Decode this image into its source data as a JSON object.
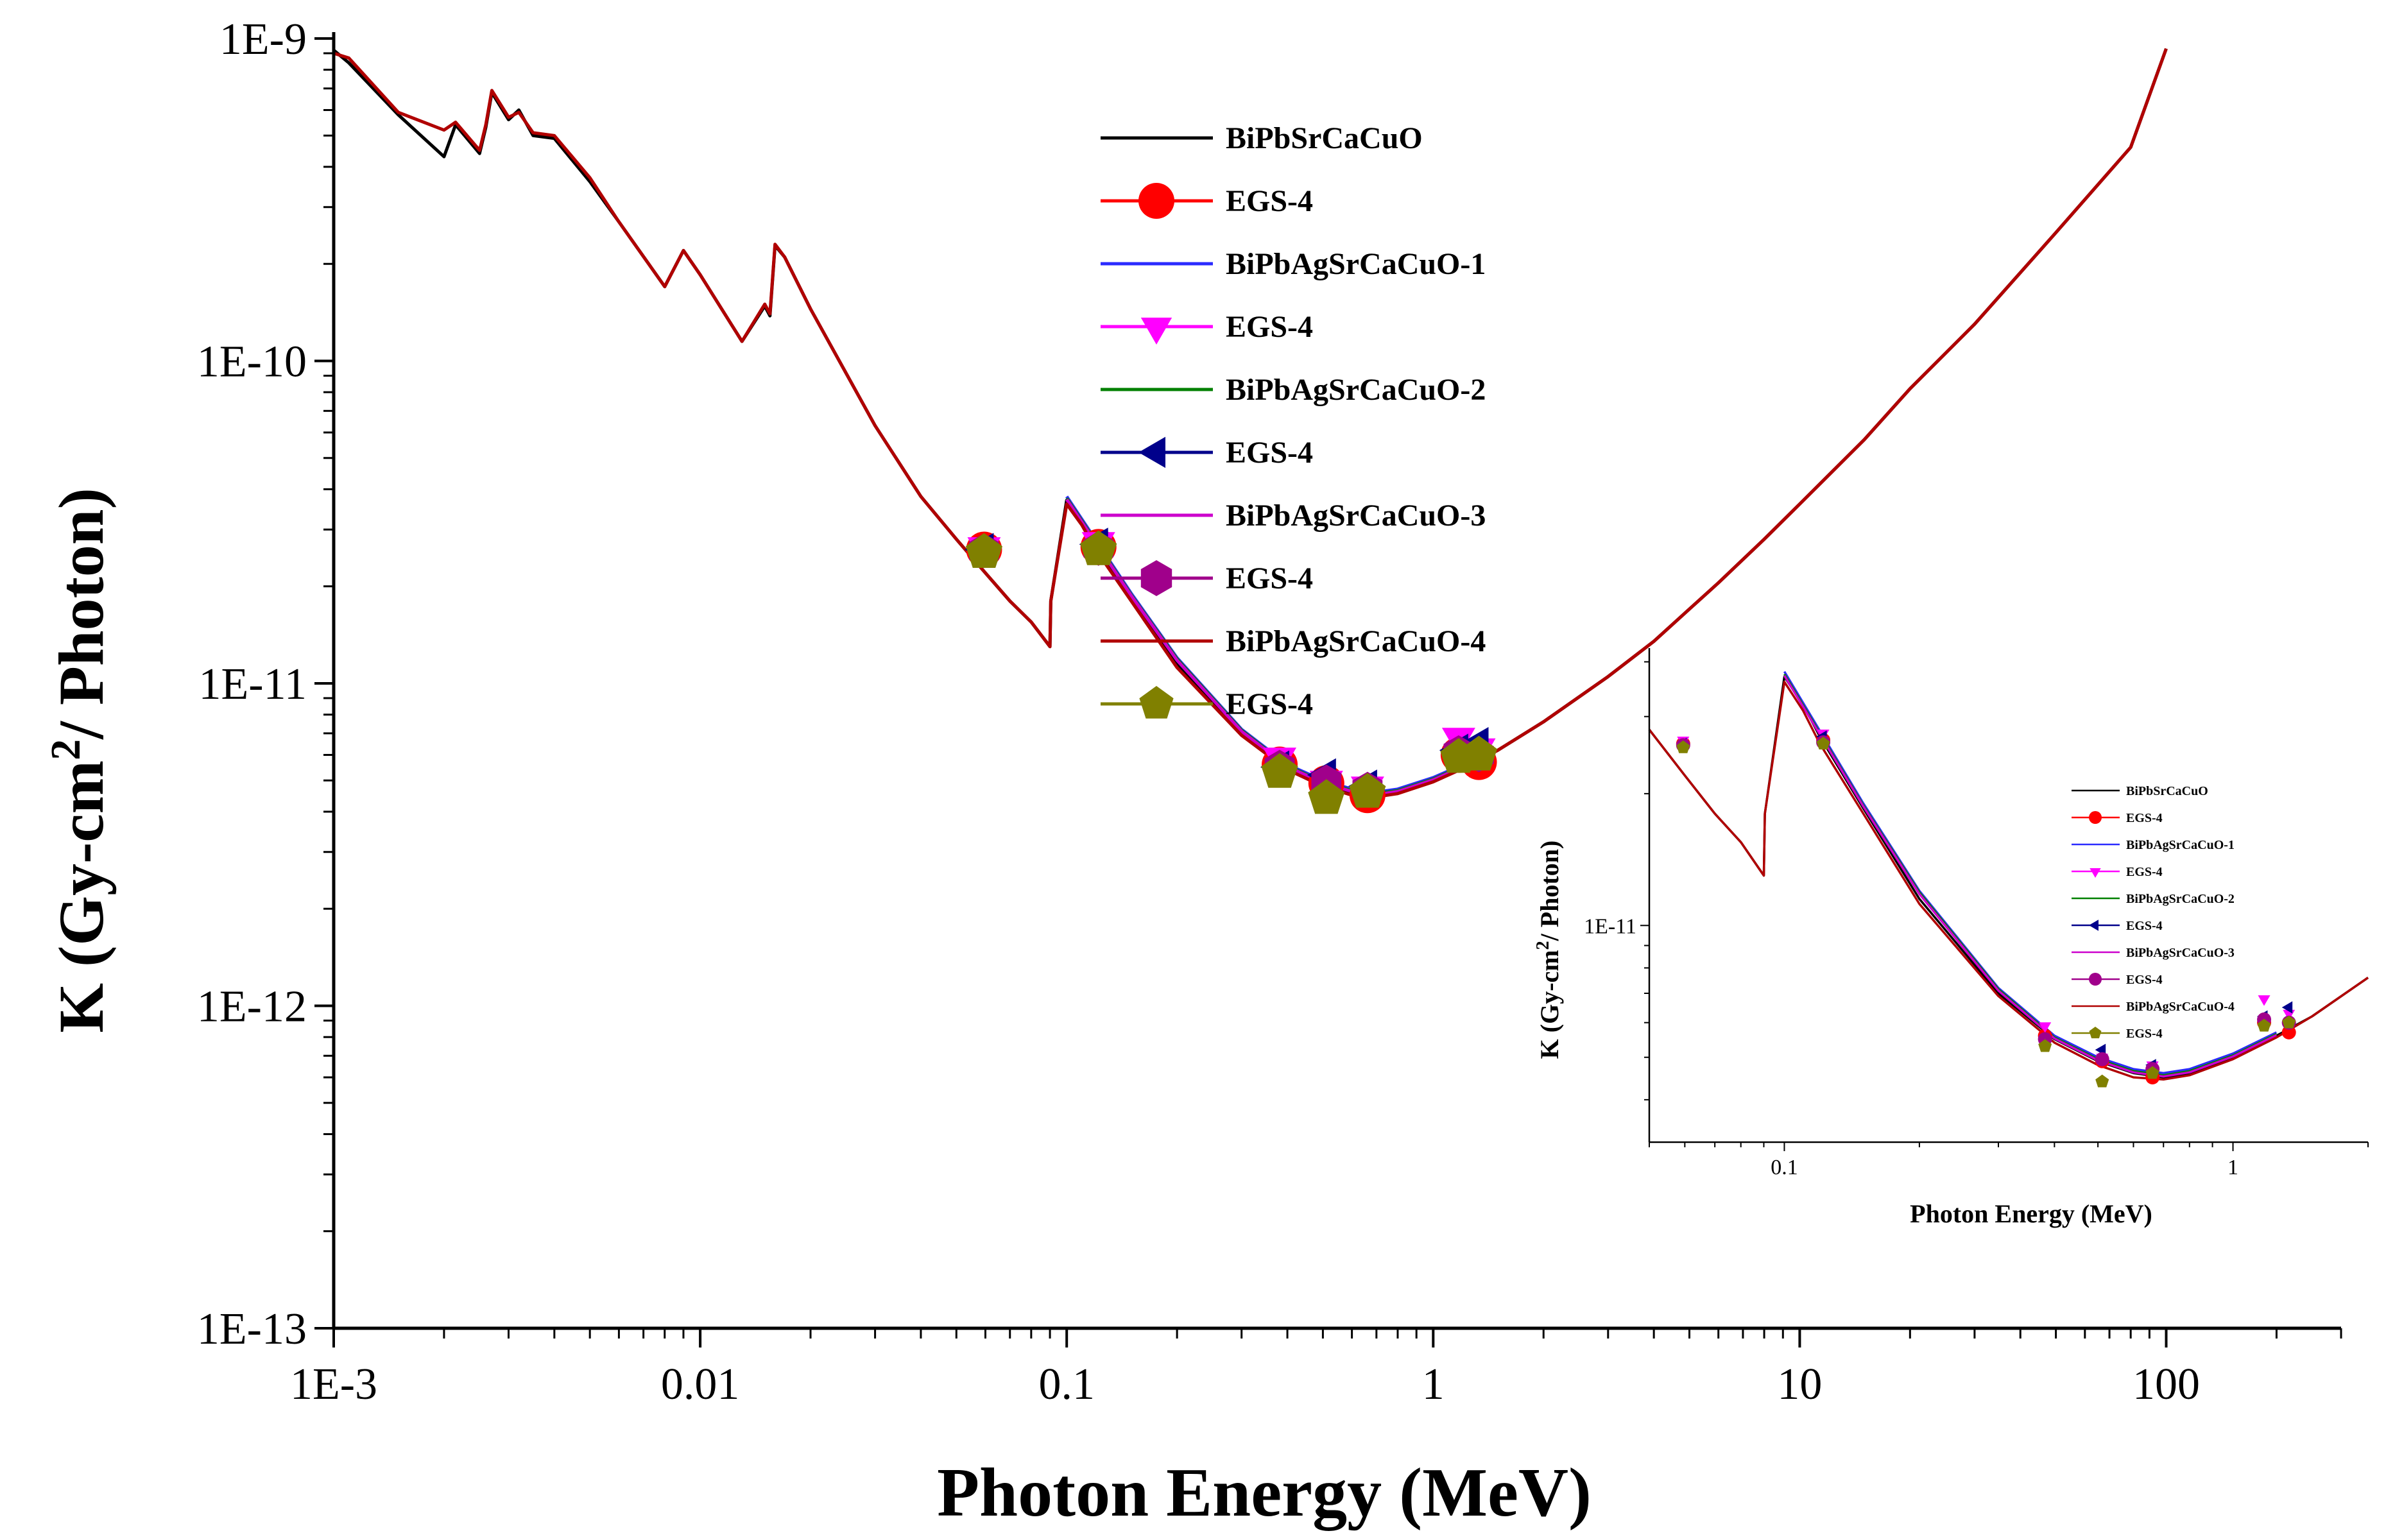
{
  "chart_data": [
    {
      "id": "main",
      "type": "line",
      "title": "",
      "xlabel": "Photon Energy (MeV)",
      "ylabel": "K (Gy-cm2/ Photon)",
      "ylabel_parts": {
        "pre": "K (Gy-cm",
        "sup": "2",
        "post": "/ Photon)"
      },
      "xscale": "log",
      "yscale": "log",
      "xlim": [
        0.001,
        300
      ],
      "ylim": [
        1e-13,
        1e-09
      ],
      "xticks": [
        {
          "v": 0.001,
          "label": "1E-3"
        },
        {
          "v": 0.01,
          "label": "0.01"
        },
        {
          "v": 0.1,
          "label": "0.1"
        },
        {
          "v": 1,
          "label": "1"
        },
        {
          "v": 10,
          "label": "10"
        },
        {
          "v": 100,
          "label": "100"
        }
      ],
      "yticks": [
        {
          "v": 1e-09,
          "label": "1E-9"
        },
        {
          "v": 1e-10,
          "label": "1E-10"
        },
        {
          "v": 1e-11,
          "label": "1E-11"
        },
        {
          "v": 1e-12,
          "label": "1E-12"
        },
        {
          "v": 1e-13,
          "label": "1E-13"
        }
      ],
      "legend_position": "top-center",
      "series": [
        {
          "name": "BiPbSrCaCuO",
          "kind": "line",
          "color": "#000000",
          "ref": "c1"
        },
        {
          "name": "EGS-4",
          "kind": "marker",
          "marker": "circle",
          "color": "#ff0000",
          "ref": "m1"
        },
        {
          "name": "BiPbAgSrCaCuO-1",
          "kind": "line",
          "color": "#2b2bff",
          "ref": "c2"
        },
        {
          "name": "EGS-4",
          "kind": "marker",
          "marker": "triangle-down",
          "color": "#ff00ff",
          "ref": "m2"
        },
        {
          "name": "BiPbAgSrCaCuO-2",
          "kind": "line",
          "color": "#008000",
          "ref": "c3"
        },
        {
          "name": "EGS-4",
          "kind": "marker",
          "marker": "triangle-left",
          "color": "#00008b",
          "ref": "m3"
        },
        {
          "name": "BiPbAgSrCaCuO-3",
          "kind": "line",
          "color": "#cc00cc",
          "ref": "c4"
        },
        {
          "name": "EGS-4",
          "kind": "marker",
          "marker": "hexagon",
          "color": "#a0008b",
          "ref": "m4"
        },
        {
          "name": "BiPbAgSrCaCuO-4",
          "kind": "line",
          "color": "#b00000",
          "ref": "c5"
        },
        {
          "name": "EGS-4",
          "kind": "marker",
          "marker": "pentagon",
          "color": "#808000",
          "ref": "m5"
        }
      ],
      "curves": {
        "c1": {
          "x": [
            0.001,
            0.0011,
            0.0015,
            0.002,
            0.00215,
            0.0025,
            0.0026,
            0.0027,
            0.003,
            0.0032,
            0.0035,
            0.004,
            0.005,
            0.006,
            0.008,
            0.009,
            0.01,
            0.013,
            0.015,
            0.0155,
            0.016,
            0.017,
            0.02,
            0.03,
            0.04,
            0.05,
            0.06,
            0.07,
            0.08,
            0.09,
            0.0905,
            0.1,
            0.11,
            0.12,
            0.15,
            0.2,
            0.3,
            0.4,
            0.5,
            0.6,
            0.7,
            0.8,
            1,
            1.25,
            1.5,
            2,
            3,
            4,
            5,
            6,
            8,
            10,
            15,
            20,
            30,
            50,
            80,
            100
          ],
          "y": [
            9.2e-10,
            8.4e-10,
            5.8e-10,
            4.3e-10,
            5.4e-10,
            4.4e-10,
            5.3e-10,
            6.8e-10,
            5.6e-10,
            6e-10,
            5e-10,
            4.9e-10,
            3.6e-10,
            2.7e-10,
            1.7e-10,
            2.2e-10,
            1.85e-10,
            1.15e-10,
            1.48e-10,
            1.38e-10,
            2.28e-10,
            2.1e-10,
            1.45e-10,
            6.3e-11,
            3.8e-11,
            2.8e-11,
            2.2e-11,
            1.8e-11,
            1.55e-11,
            1.3e-11,
            1.8e-11,
            3.7e-11,
            3.2e-11,
            2.7e-11,
            1.85e-11,
            1.15e-11,
            7e-12,
            5.5e-12,
            4.9e-12,
            4.6e-12,
            4.5e-12,
            4.6e-12,
            5e-12,
            5.6e-12,
            6.2e-12,
            7.6e-12,
            1.05e-11,
            1.35e-11,
            1.7e-11,
            2.05e-11,
            2.8e-11,
            3.6e-11,
            5.7e-11,
            8.2e-11,
            1.3e-10,
            2.5e-10,
            4.6e-10,
            9.3e-10
          ]
        },
        "c2": {
          "x": [
            0.1,
            0.15,
            0.2,
            0.3,
            0.4,
            0.5,
            0.6,
            0.7,
            0.8,
            1,
            1.25
          ],
          "y": [
            3.8e-11,
            1.9e-11,
            1.2e-11,
            7.2e-12,
            5.6e-12,
            5e-12,
            4.7e-12,
            4.6e-12,
            4.7e-12,
            5.1e-12,
            5.7e-12
          ]
        },
        "c3": {
          "x": [
            0.1,
            0.15,
            0.2,
            0.3,
            0.4,
            0.5,
            0.6,
            0.7,
            0.8,
            1,
            1.25
          ],
          "y": [
            3.75e-11,
            1.88e-11,
            1.19e-11,
            7.15e-12,
            5.55e-12,
            4.95e-12,
            4.65e-12,
            4.55e-12,
            4.65e-12,
            5.05e-12,
            5.65e-12
          ]
        },
        "c4": {
          "x": [
            0.1,
            0.15,
            0.2,
            0.3,
            0.4,
            0.5,
            0.6,
            0.7,
            0.8,
            1,
            1.25
          ],
          "y": [
            3.72e-11,
            1.87e-11,
            1.18e-11,
            7.1e-12,
            5.52e-12,
            4.92e-12,
            4.62e-12,
            4.52e-12,
            4.62e-12,
            5.02e-12,
            5.62e-12
          ]
        },
        "c5": {
          "x": [
            0.001,
            0.0011,
            0.0015,
            0.002,
            0.00215,
            0.0025,
            0.0026,
            0.0027,
            0.003,
            0.0032,
            0.0035,
            0.004,
            0.005,
            0.006,
            0.008,
            0.009,
            0.01,
            0.013,
            0.015,
            0.0155,
            0.016,
            0.017,
            0.02,
            0.03,
            0.04,
            0.05,
            0.06,
            0.07,
            0.08,
            0.09,
            0.0905,
            0.1,
            0.11,
            0.12,
            0.15,
            0.2,
            0.3,
            0.4,
            0.5,
            0.6,
            0.7,
            0.8,
            1,
            1.25,
            1.5,
            2,
            3,
            4,
            5,
            6,
            8,
            10,
            15,
            20,
            30,
            50,
            80,
            100
          ],
          "y": [
            9e-10,
            8.7e-10,
            5.9e-10,
            5.2e-10,
            5.5e-10,
            4.5e-10,
            5.4e-10,
            6.9e-10,
            5.7e-10,
            5.9e-10,
            5.1e-10,
            5e-10,
            3.7e-10,
            2.7e-10,
            1.7e-10,
            2.2e-10,
            1.85e-10,
            1.15e-10,
            1.5e-10,
            1.4e-10,
            2.3e-10,
            2.1e-10,
            1.45e-10,
            6.3e-11,
            3.8e-11,
            2.8e-11,
            2.2e-11,
            1.8e-11,
            1.55e-11,
            1.3e-11,
            1.8e-11,
            3.6e-11,
            3.1e-11,
            2.6e-11,
            1.8e-11,
            1.12e-11,
            6.9e-12,
            5.4e-12,
            4.8e-12,
            4.5e-12,
            4.45e-12,
            4.55e-12,
            4.95e-12,
            5.55e-12,
            6.2e-12,
            7.6e-12,
            1.05e-11,
            1.35e-11,
            1.7e-11,
            2.05e-11,
            2.8e-11,
            3.6e-11,
            5.7e-11,
            8.2e-11,
            1.3e-10,
            2.5e-10,
            4.6e-10,
            9.3e-10
          ]
        }
      },
      "markers": {
        "m1": {
          "x": [
            0.0595,
            0.1221,
            0.3811,
            0.511,
            0.6617,
            1.1732,
            1.3325
          ],
          "y": [
            2.6e-11,
            2.65e-11,
            5.6e-12,
            4.9e-12,
            4.5e-12,
            6e-12,
            5.7e-12
          ]
        },
        "m2": {
          "x": [
            0.0595,
            0.1221,
            0.3811,
            0.511,
            0.6617,
            1.1732,
            1.3325
          ],
          "y": [
            2.65e-11,
            2.75e-11,
            5.9e-12,
            5e-12,
            4.8e-12,
            6.8e-12,
            6.3e-12
          ]
        },
        "m3": {
          "x": [
            0.0595,
            0.1221,
            0.3811,
            0.511,
            0.6617,
            1.1732,
            1.3325
          ],
          "y": [
            2.6e-11,
            2.7e-11,
            5.5e-12,
            5.2e-12,
            4.8e-12,
            6.2e-12,
            6.5e-12
          ]
        },
        "m4": {
          "x": [
            0.0595,
            0.1221,
            0.3811,
            0.511,
            0.6617,
            1.1732,
            1.3325
          ],
          "y": [
            2.58e-11,
            2.62e-11,
            5.5e-12,
            4.95e-12,
            4.7e-12,
            6.1e-12,
            6e-12
          ]
        },
        "m5": {
          "x": [
            0.0595,
            0.1221,
            0.3811,
            0.511,
            0.6617,
            1.1732,
            1.3325
          ],
          "y": [
            2.55e-11,
            2.6e-11,
            5.3e-12,
            4.4e-12,
            4.6e-12,
            5.9e-12,
            6e-12
          ]
        }
      }
    },
    {
      "id": "inset",
      "type": "line",
      "title": "",
      "xlabel": "Photon Energy (MeV)",
      "ylabel": "K (Gy-cm2/ Photon)",
      "ylabel_parts": {
        "pre": "K (Gy-cm",
        "sup": "2",
        "post": "/ Photon)"
      },
      "xscale": "log",
      "yscale": "log",
      "xlim": [
        0.05,
        2
      ],
      "ylim": [
        3.2e-12,
        4.3e-11
      ],
      "xticks": [
        {
          "v": 0.1,
          "label": "0.1"
        },
        {
          "v": 1,
          "label": "1"
        }
      ],
      "yticks": [
        {
          "v": 1e-11,
          "label": "1E-11"
        }
      ],
      "legend_position": "right",
      "series": [
        {
          "name": "BiPbSrCaCuO",
          "kind": "line",
          "color": "#000000"
        },
        {
          "name": "EGS-4",
          "kind": "marker",
          "marker": "circle",
          "color": "#ff0000"
        },
        {
          "name": "BiPbAgSrCaCuO-1",
          "kind": "line",
          "color": "#2b2bff"
        },
        {
          "name": "EGS-4",
          "kind": "marker",
          "marker": "triangle-down",
          "color": "#ff00ff"
        },
        {
          "name": "BiPbAgSrCaCuO-2",
          "kind": "line",
          "color": "#008000"
        },
        {
          "name": "EGS-4",
          "kind": "marker",
          "marker": "triangle-left",
          "color": "#00008b"
        },
        {
          "name": "BiPbAgSrCaCuO-3",
          "kind": "line",
          "color": "#cc00cc"
        },
        {
          "name": "EGS-4",
          "kind": "marker",
          "marker": "circle",
          "color": "#a0008b"
        },
        {
          "name": "BiPbAgSrCaCuO-4",
          "kind": "line",
          "color": "#b00000"
        },
        {
          "name": "EGS-4",
          "kind": "marker",
          "marker": "pentagon",
          "color": "#808000"
        }
      ]
    }
  ]
}
